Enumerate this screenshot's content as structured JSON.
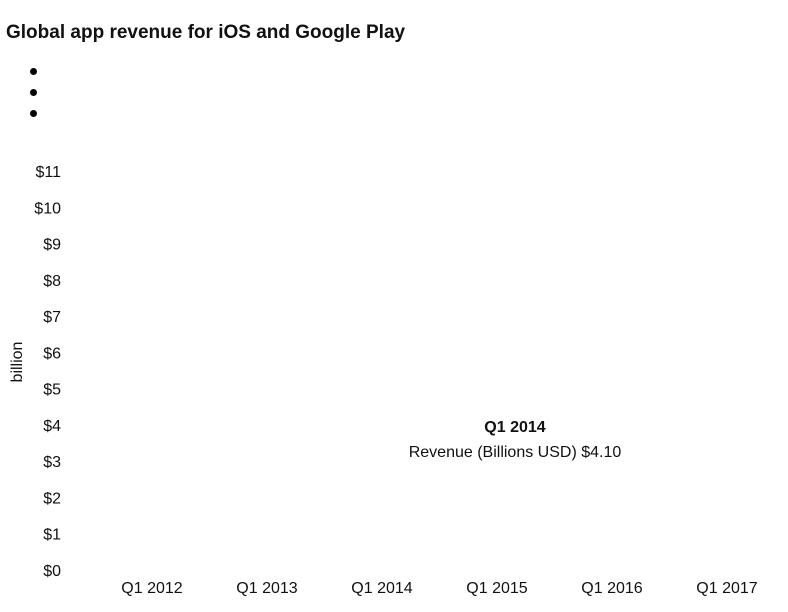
{
  "chart_data": {
    "type": "line",
    "title": "Global app revenue for iOS and Google Play",
    "xlabel": "",
    "ylabel": "billion",
    "ylim": [
      0,
      11
    ],
    "grid": false,
    "x": [
      "Q1 2012",
      "Q1 2013",
      "Q1 2014",
      "Q1 2015",
      "Q1 2016",
      "Q1 2017"
    ],
    "y_tick_labels": [
      "$0",
      "$1",
      "$2",
      "$3",
      "$4",
      "$5",
      "$6",
      "$7",
      "$8",
      "$9",
      "$10",
      "$11"
    ],
    "tooltip": {
      "title": "Q1 2014",
      "series_label": "Revenue (Billions USD)",
      "value_text": "$4.10"
    }
  }
}
